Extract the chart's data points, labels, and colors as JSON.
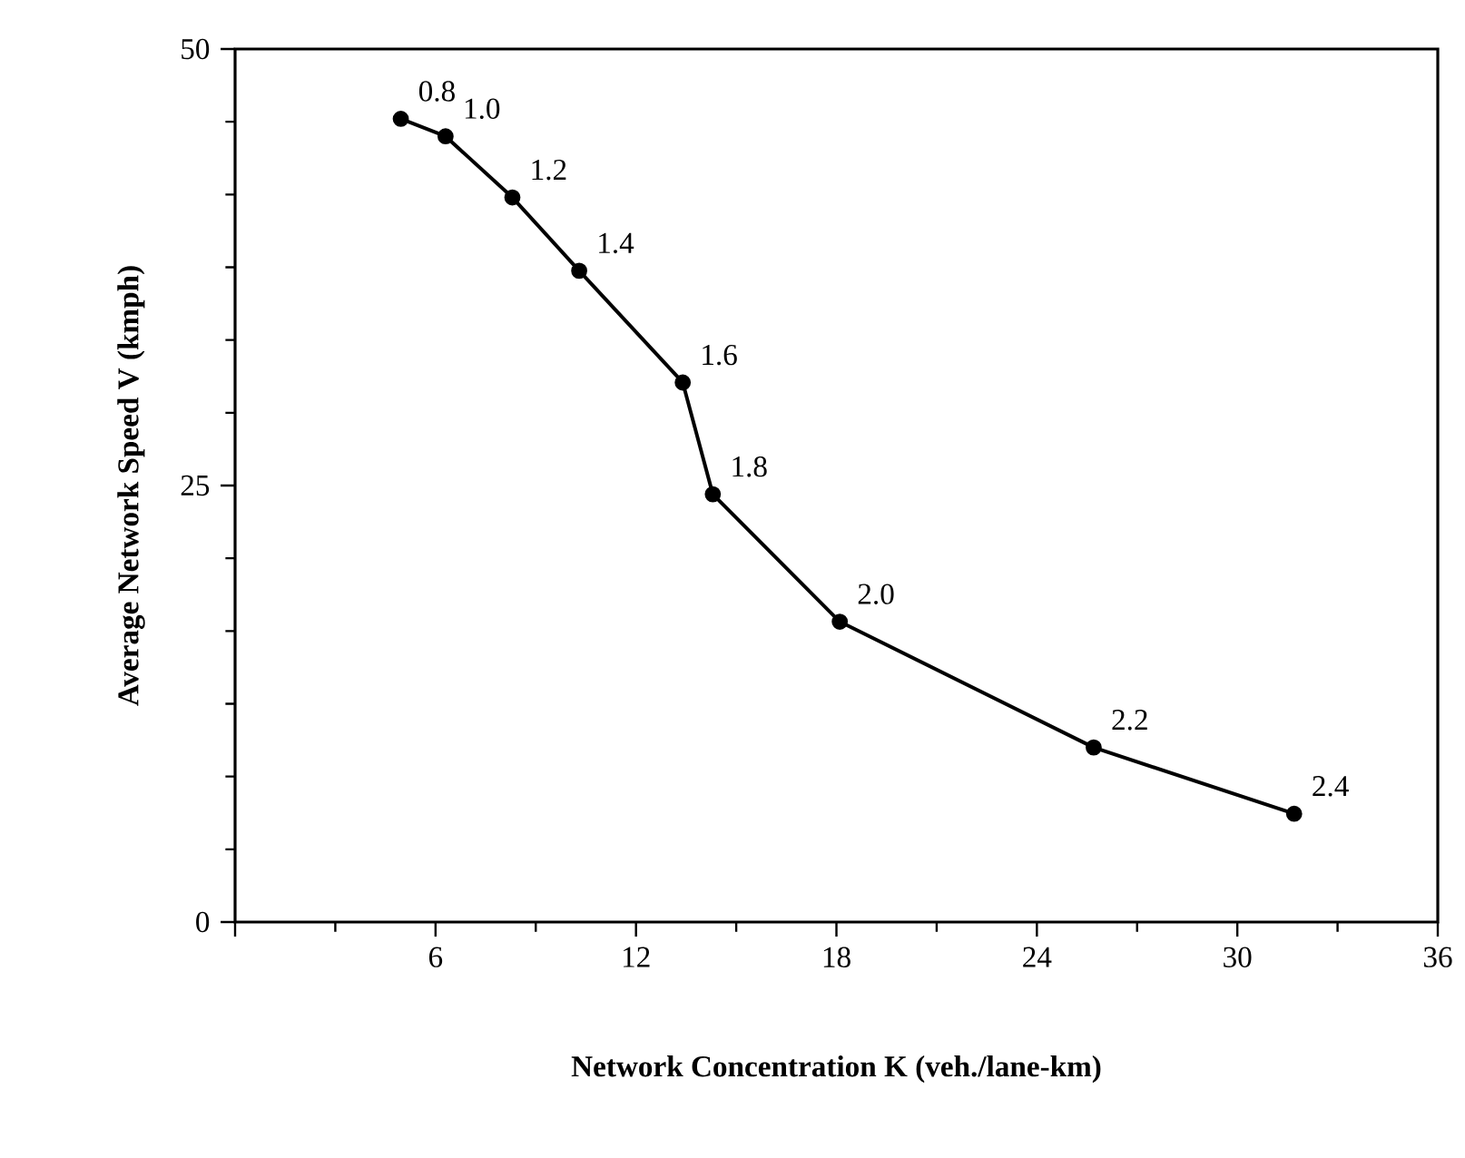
{
  "chart_data": {
    "type": "line",
    "xlabel": "Network Concentration K (veh./lane-km)",
    "ylabel": "Average Network Speed V (kmph)",
    "x": [
      4.96,
      6.3,
      8.3,
      10.3,
      13.4,
      14.3,
      18.1,
      25.7,
      31.7
    ],
    "series": [
      {
        "color": "#000000",
        "values": [
          46.0,
          45.0,
          41.5,
          37.3,
          30.9,
          24.5,
          17.2,
          10.0,
          6.2
        ]
      }
    ],
    "xlim": [
      0,
      36
    ],
    "xticks": [
      {
        "value": 0,
        "label": null
      },
      6,
      12,
      18,
      24,
      30,
      36
    ],
    "ylim": [
      0,
      50
    ],
    "yticks": [
      0,
      25,
      50
    ],
    "marker": "circle",
    "line_style": "solid",
    "annotations": [
      {
        "text": "0.8",
        "x": 4.96,
        "y": 46.0
      },
      {
        "text": "1.0",
        "x": 6.3,
        "y": 45.0
      },
      {
        "text": "1.2",
        "x": 8.3,
        "y": 41.5
      },
      {
        "text": "1.4",
        "x": 10.3,
        "y": 37.3
      },
      {
        "text": "1.6",
        "x": 13.4,
        "y": 30.9
      },
      {
        "text": "1.8",
        "x": 14.3,
        "y": 24.5
      },
      {
        "text": "2.0",
        "x": 18.1,
        "y": 17.2
      },
      {
        "text": "2.2",
        "x": 25.7,
        "y": 10.0
      },
      {
        "text": "2.4",
        "x": 31.7,
        "y": 6.2
      }
    ]
  }
}
